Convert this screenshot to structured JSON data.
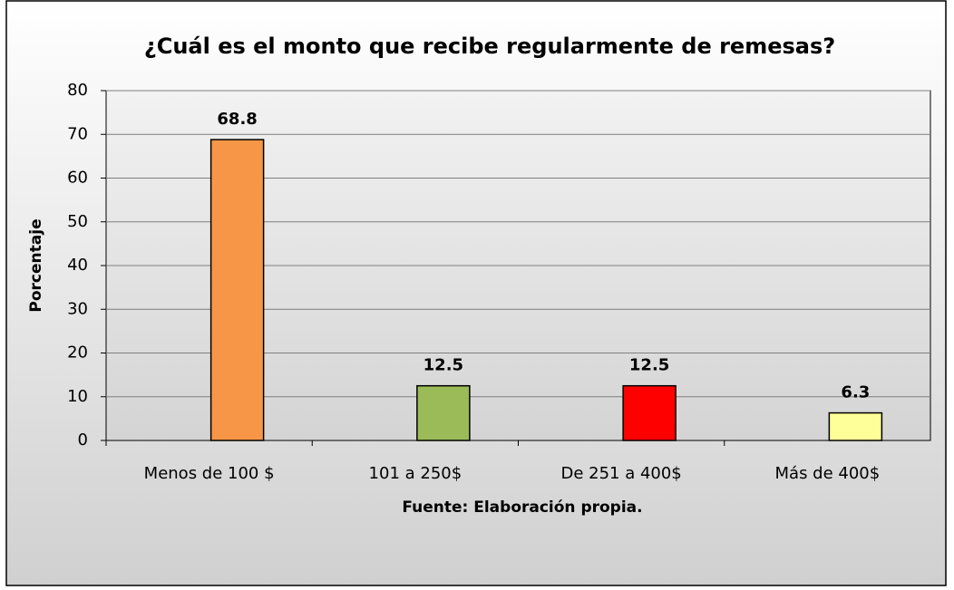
{
  "chart_data": {
    "type": "bar",
    "title": "¿Cuál es el monto que recibe regularmente de remesas?",
    "xlabel": "Fuente: Elaboración propia.",
    "ylabel": "Porcentaje",
    "categories": [
      "Menos de 100 $",
      "101 a 250$",
      "De 251 a 400$",
      "Más de 400$"
    ],
    "values": [
      68.8,
      12.5,
      12.5,
      6.3
    ],
    "colors": [
      "#f79646",
      "#9bbb59",
      "#ff0000",
      "#ffff99"
    ],
    "ylim": [
      0,
      80
    ],
    "yticks": [
      0,
      10,
      20,
      30,
      40,
      50,
      60,
      70,
      80
    ],
    "grid": true
  }
}
